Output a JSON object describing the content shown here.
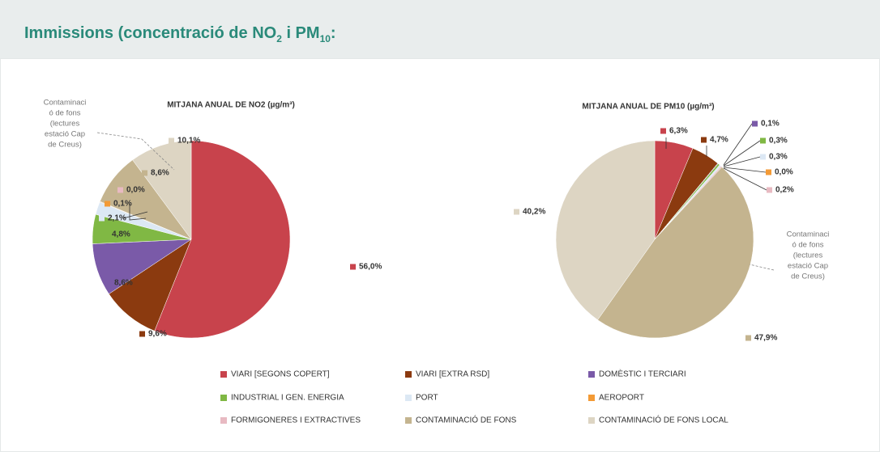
{
  "header": {
    "title_parts": [
      "Immissions (concentració de NO",
      "2",
      " i PM",
      "10",
      ":"
    ]
  },
  "legend": {
    "names": [
      "VIARI [SEGONS COPERT]",
      "VIARI [EXTRA RSD]",
      "DOMÈSTIC I TERCIARI",
      "INDUSTRIAL I GEN. ENERGIA",
      "PORT",
      "AEROPORT",
      "FORMIGONERES I EXTRACTIVES",
      "CONTAMINACIÓ DE FONS",
      "CONTAMINACIÓ DE FONS LOCAL"
    ],
    "colors": [
      "#c8434c",
      "#8b3a0f",
      "#7a5aa8",
      "#80b844",
      "#dce8f4",
      "#f39a35",
      "#e8bac2",
      "#c4b48f",
      "#ddd5c3"
    ]
  },
  "chart_data": [
    {
      "type": "pie",
      "title": "MITJANA ANUAL DE NO2 (µg/m³)",
      "values": [
        56.0,
        9.6,
        8.6,
        4.8,
        2.1,
        0.1,
        0.0,
        8.6,
        10.1
      ],
      "value_labels": [
        "56,0%",
        "9,6%",
        "8,6%",
        "4,8%",
        "2,1%",
        "0,1%",
        "0,0%",
        "8,6%",
        "10,1%"
      ],
      "annotation": [
        "Contaminaci",
        "ó de fons",
        "(lectures",
        "estació Cap",
        "de Creus)"
      ]
    },
    {
      "type": "pie",
      "title": "MITJANA ANUAL DE PM10 (µg/m³)",
      "values": [
        6.3,
        4.7,
        0.1,
        0.3,
        0.3,
        0.0,
        0.2,
        47.9,
        40.2
      ],
      "value_labels": [
        "6,3%",
        "4,7%",
        "0,1%",
        "0,3%",
        "0,3%",
        "0,0%",
        "0,2%",
        "47,9%",
        "40,2%"
      ],
      "annotation": [
        "Contaminaci",
        "ó de fons",
        "(lectures",
        "estació Cap",
        "de Creus)"
      ]
    }
  ]
}
